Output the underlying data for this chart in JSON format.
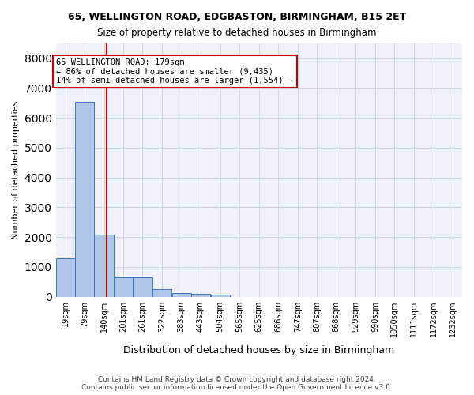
{
  "title1": "65, WELLINGTON ROAD, EDGBASTON, BIRMINGHAM, B15 2ET",
  "title2": "Size of property relative to detached houses in Birmingham",
  "xlabel": "Distribution of detached houses by size in Birmingham",
  "ylabel": "Number of detached properties",
  "footer1": "Contains HM Land Registry data © Crown copyright and database right 2024.",
  "footer2": "Contains public sector information licensed under the Open Government Licence v3.0.",
  "bin_labels": [
    "19sqm",
    "79sqm",
    "140sqm",
    "201sqm",
    "261sqm",
    "322sqm",
    "383sqm",
    "443sqm",
    "504sqm",
    "565sqm",
    "625sqm",
    "686sqm",
    "747sqm",
    "807sqm",
    "868sqm",
    "929sqm",
    "990sqm",
    "1050sqm",
    "1111sqm",
    "1172sqm",
    "1232sqm"
  ],
  "bin_edges": [
    19,
    79,
    140,
    201,
    261,
    322,
    383,
    443,
    504,
    565,
    625,
    686,
    747,
    807,
    868,
    929,
    990,
    1050,
    1111,
    1172,
    1232
  ],
  "bar_heights": [
    1300,
    6550,
    2080,
    640,
    640,
    240,
    130,
    100,
    65,
    0,
    0,
    0,
    0,
    0,
    0,
    0,
    0,
    0,
    0,
    0
  ],
  "bar_color": "#aec6e8",
  "bar_edge_color": "#4472c4",
  "grid_color": "#d0d8e8",
  "bg_color": "#eef2f8",
  "property_line_x": 179,
  "property_line_color": "#cc0000",
  "annotation_text": "65 WELLINGTON ROAD: 179sqm\n← 86% of detached houses are smaller (9,435)\n14% of semi-detached houses are larger (1,554) →",
  "annotation_box_color": "#cc0000",
  "ylim": [
    0,
    8500
  ],
  "yticks": [
    0,
    1000,
    2000,
    3000,
    4000,
    5000,
    6000,
    7000,
    8000
  ]
}
